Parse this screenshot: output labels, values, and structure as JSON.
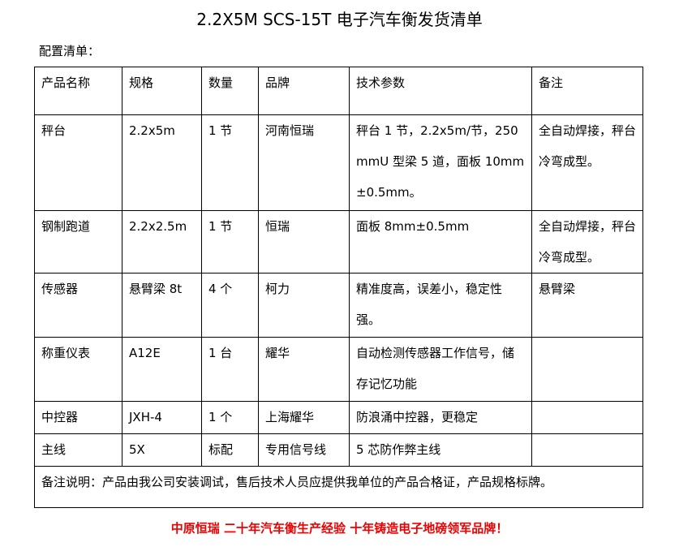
{
  "header": {
    "title": "2.2X5M SCS-15T 电子汽车衡发货清单",
    "subtitle": "配置清单："
  },
  "table": {
    "columns": [
      "产品名称",
      "规格",
      "数量",
      "品牌",
      "技术参数",
      "备注"
    ],
    "rows": [
      [
        "秤台",
        "2.2x5m",
        "1 节",
        "河南恒瑞",
        "秤台 1 节，2.2x5m/节，250mmU 型梁 5 道，面板 10mm±0.5mm。",
        "全自动焊接，秤台冷弯成型。"
      ],
      [
        "钢制跑道",
        "2.2x2.5m",
        "1 节",
        "恒瑞",
        "面板 8mm±0.5mm",
        "全自动焊接，秤台冷弯成型。"
      ],
      [
        "传感器",
        "悬臂梁 8t",
        "4 个",
        "柯力",
        "精准度高，误差小，稳定性强。",
        "悬臂梁"
      ],
      [
        "称重仪表",
        "A12E",
        "1 台",
        "耀华",
        "自动检测传感器工作信号，储存记忆功能",
        null
      ],
      [
        "中控器",
        "JXH-4",
        "1 个",
        "上海耀华",
        "防浪涌中控器，更稳定",
        null
      ],
      [
        "主线",
        "5X",
        "标配",
        "专用信号线",
        "5 芯防作弊主线",
        null
      ]
    ],
    "note": "备注说明：产品由我公司安装调试，售后技术人员应提供我单位的产品合格证，产品规格标牌。"
  },
  "footer": {
    "slogan": "中原恒瑞 二十年汽车衡生产经验 十年铸造电子地磅领军品牌！"
  }
}
